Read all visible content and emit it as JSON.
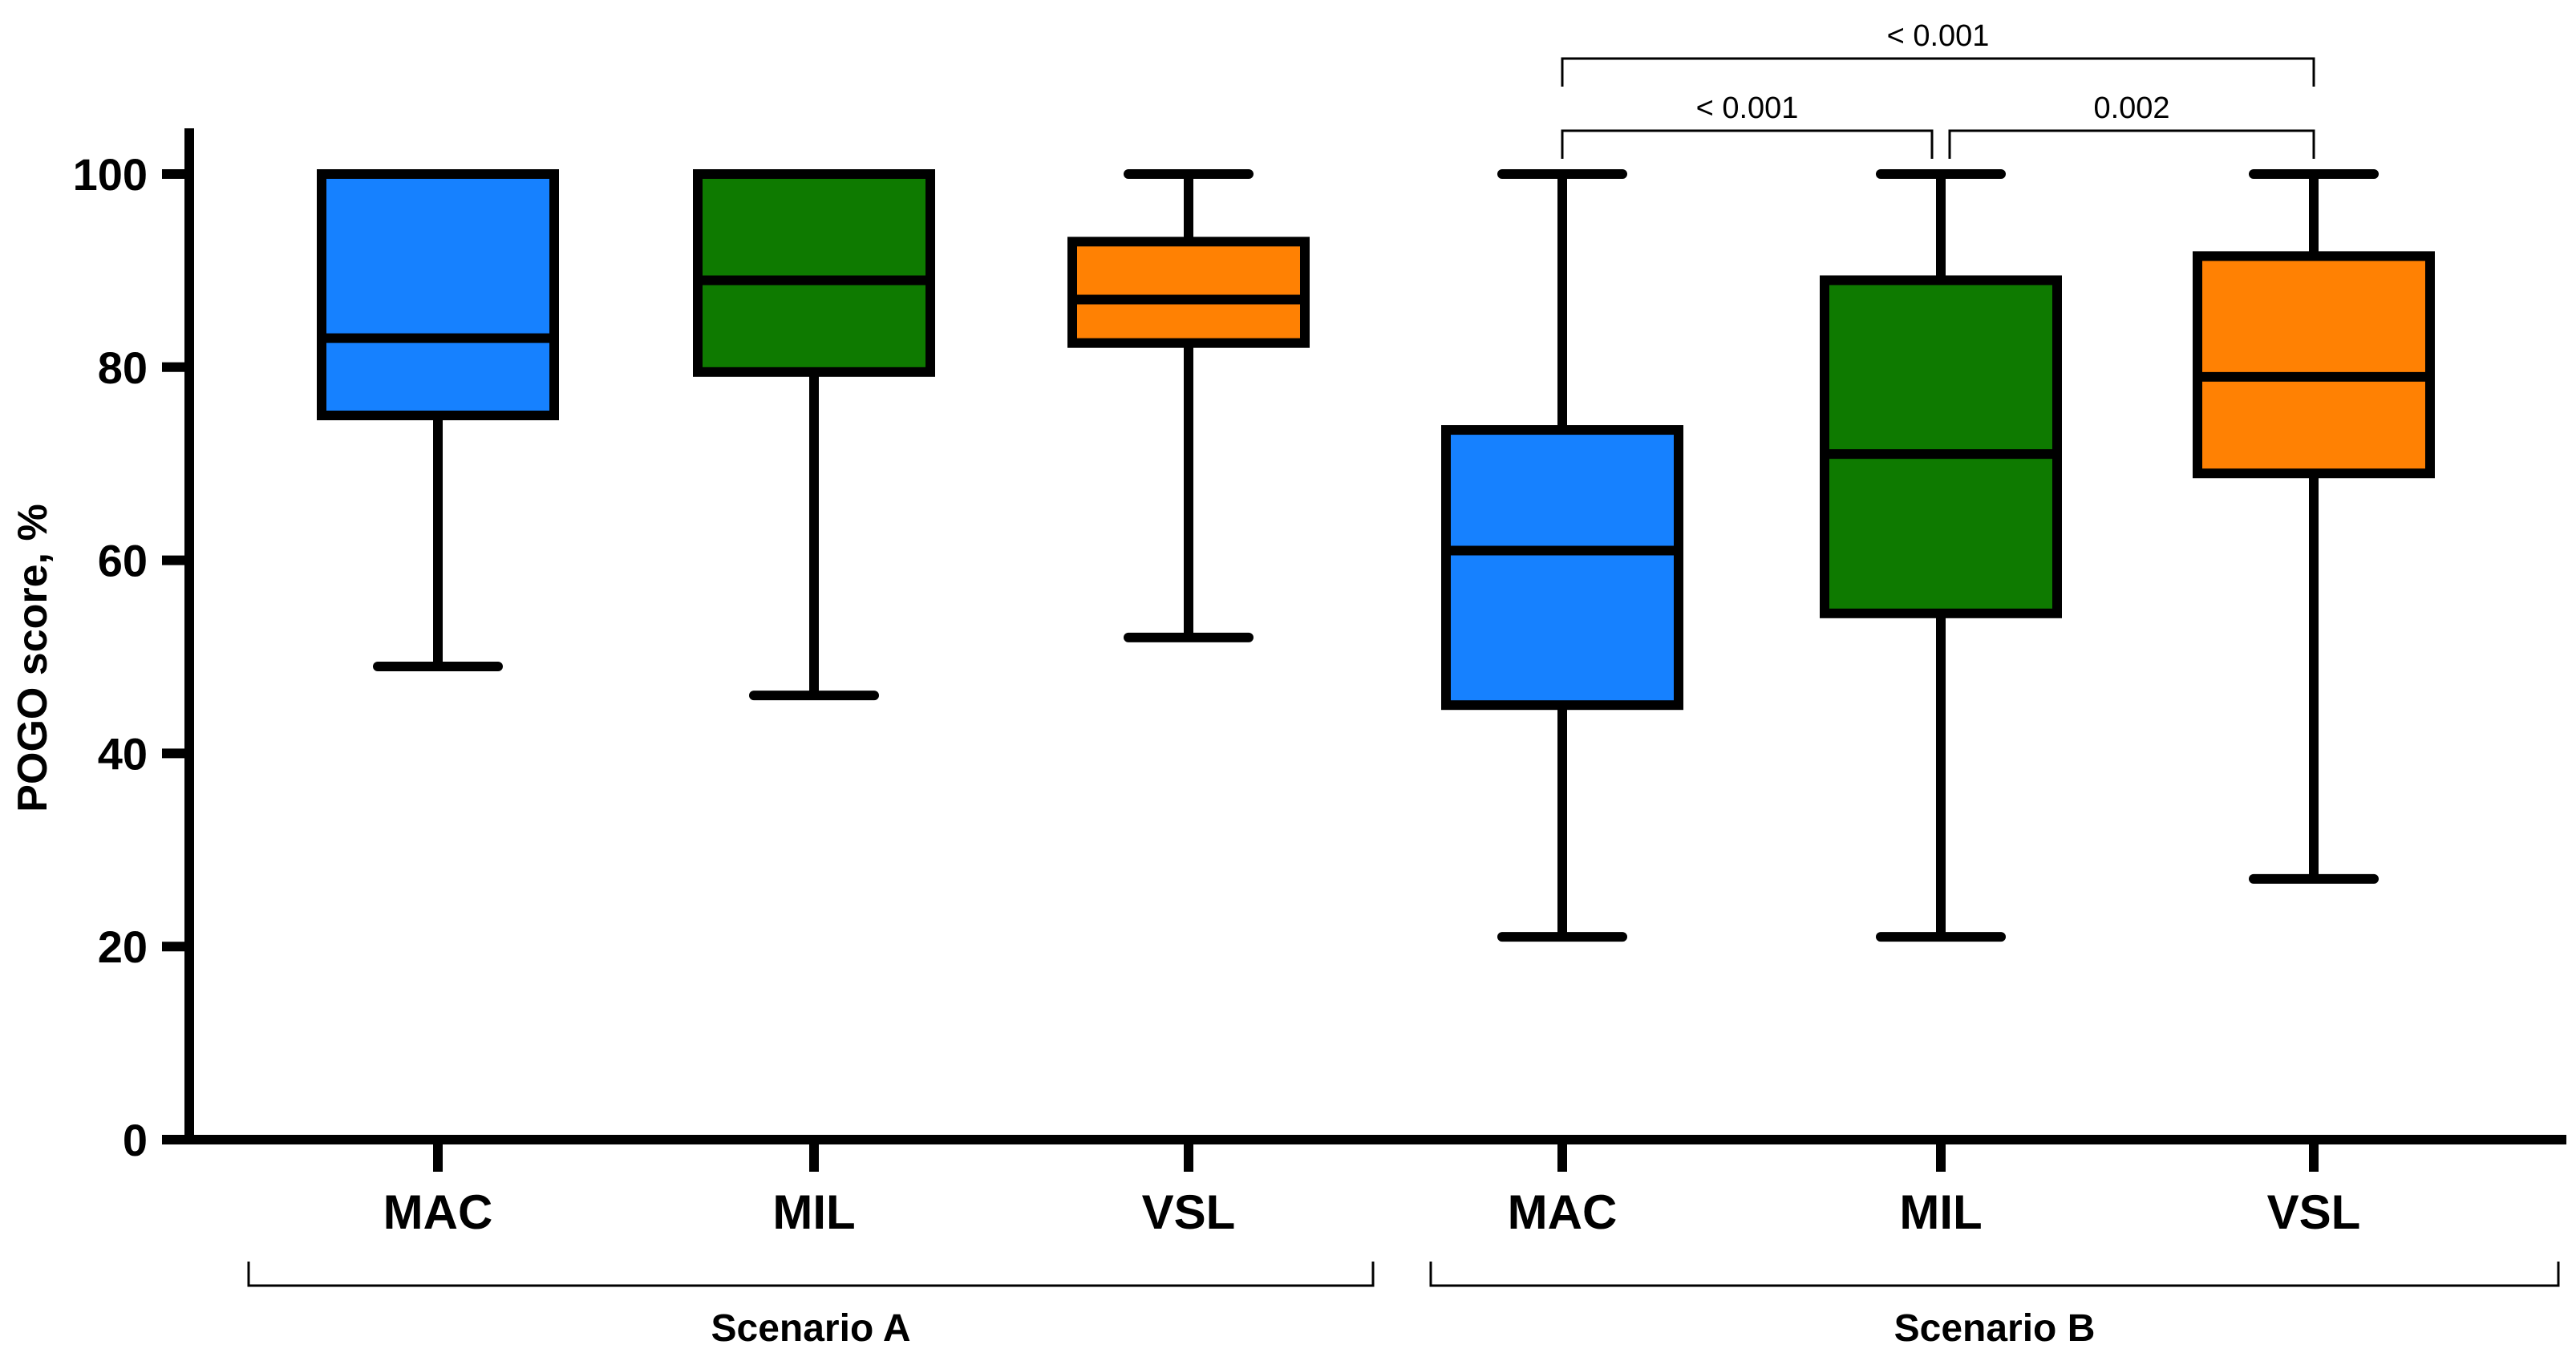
{
  "chart_data": {
    "type": "box",
    "ylabel": "POGO score, %",
    "xlabel": "",
    "ylim": [
      0,
      105
    ],
    "yticks": [
      0,
      20,
      40,
      60,
      80,
      100
    ],
    "groups": [
      {
        "name": "Scenario A",
        "boxes": [
          {
            "label": "MAC",
            "color": "#1681FF",
            "min": 49,
            "q1": 75,
            "median": 83,
            "q3": 100,
            "max": 100
          },
          {
            "label": "MIL",
            "color": "#0E7A00",
            "min": 46,
            "q1": 79.5,
            "median": 89,
            "q3": 100,
            "max": 100
          },
          {
            "label": "VSL",
            "color": "#FF8103",
            "min": 52,
            "q1": 82.5,
            "median": 87,
            "q3": 93,
            "max": 100
          }
        ]
      },
      {
        "name": "Scenario B",
        "boxes": [
          {
            "label": "MAC",
            "color": "#1681FF",
            "min": 21,
            "q1": 45,
            "median": 61,
            "q3": 73.5,
            "max": 100
          },
          {
            "label": "MIL",
            "color": "#0E7A00",
            "min": 21,
            "q1": 54.5,
            "median": 71,
            "q3": 89,
            "max": 100
          },
          {
            "label": "VSL",
            "color": "#FF8103",
            "min": 27,
            "q1": 69,
            "median": 79,
            "q3": 91.5,
            "max": 100
          }
        ]
      }
    ],
    "comparisons": [
      {
        "group": "Scenario B",
        "from": "MAC",
        "to": "MIL",
        "p_label": "< 0.001"
      },
      {
        "group": "Scenario B",
        "from": "MIL",
        "to": "VSL",
        "p_label": "0.002"
      },
      {
        "group": "Scenario B",
        "from": "MAC",
        "to": "VSL",
        "p_label": "< 0.001"
      }
    ]
  }
}
